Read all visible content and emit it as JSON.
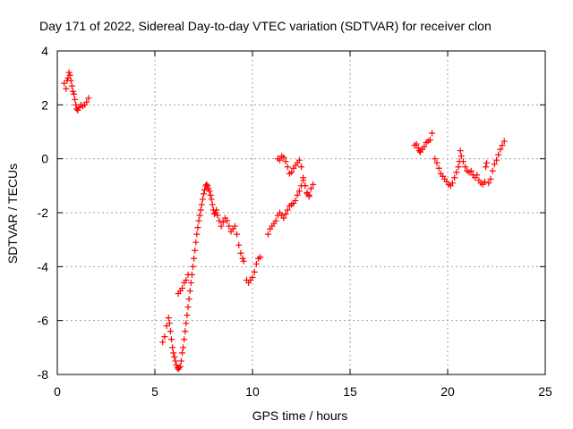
{
  "chart_data": {
    "type": "scatter",
    "title": "Day 171 of 2022, Sidereal Day-to-day VTEC variation (SDTVAR) for receiver clon",
    "xlabel": "GPS time / hours",
    "ylabel": "SDTVAR / TECUs",
    "xlim": [
      0,
      25
    ],
    "ylim": [
      -8,
      4
    ],
    "xticks": [
      "0",
      "5",
      "10",
      "15",
      "20",
      "25"
    ],
    "yticks": [
      "-8",
      "-6",
      "-4",
      "-2",
      "0",
      "2",
      "4"
    ],
    "grid": true,
    "marker": "+",
    "color": "#ff0000",
    "series": [
      {
        "name": "SDTVAR",
        "segments": [
          [
            [
              0.35,
              2.8
            ],
            [
              0.45,
              2.6
            ],
            [
              0.5,
              2.9
            ],
            [
              0.55,
              3.0
            ],
            [
              0.6,
              3.2
            ],
            [
              0.65,
              3.1
            ],
            [
              0.7,
              2.9
            ],
            [
              0.75,
              2.7
            ],
            [
              0.8,
              2.5
            ],
            [
              0.85,
              2.4
            ],
            [
              0.9,
              2.2
            ],
            [
              0.95,
              2.0
            ],
            [
              1.0,
              1.85
            ],
            [
              1.05,
              1.8
            ],
            [
              1.1,
              1.9
            ],
            [
              1.2,
              2.0
            ],
            [
              1.3,
              1.95
            ],
            [
              1.4,
              2.0
            ],
            [
              1.5,
              2.1
            ],
            [
              1.6,
              2.25
            ]
          ],
          [
            [
              5.4,
              -6.8
            ],
            [
              5.5,
              -6.6
            ],
            [
              5.6,
              -6.2
            ],
            [
              5.7,
              -5.9
            ],
            [
              5.75,
              -6.1
            ],
            [
              5.8,
              -6.4
            ],
            [
              5.85,
              -6.7
            ],
            [
              5.9,
              -7.0
            ],
            [
              5.95,
              -7.2
            ],
            [
              6.0,
              -7.35
            ],
            [
              6.05,
              -7.5
            ],
            [
              6.1,
              -7.65
            ],
            [
              6.15,
              -7.75
            ],
            [
              6.2,
              -7.8
            ],
            [
              6.25,
              -7.75
            ],
            [
              6.3,
              -7.7
            ],
            [
              6.35,
              -7.5
            ],
            [
              6.4,
              -7.2
            ],
            [
              6.45,
              -7.0
            ],
            [
              6.5,
              -6.7
            ],
            [
              6.55,
              -6.4
            ],
            [
              6.6,
              -6.1
            ],
            [
              6.65,
              -5.8
            ],
            [
              6.7,
              -5.5
            ],
            [
              6.75,
              -5.2
            ],
            [
              6.8,
              -4.9
            ],
            [
              6.85,
              -4.6
            ],
            [
              6.9,
              -4.3
            ],
            [
              6.95,
              -4.0
            ],
            [
              7.0,
              -3.7
            ],
            [
              7.05,
              -3.4
            ],
            [
              7.1,
              -3.1
            ],
            [
              7.15,
              -2.8
            ],
            [
              7.2,
              -2.55
            ],
            [
              7.25,
              -2.3
            ],
            [
              7.3,
              -2.1
            ],
            [
              7.35,
              -1.9
            ],
            [
              7.4,
              -1.7
            ],
            [
              7.45,
              -1.5
            ],
            [
              7.5,
              -1.3
            ],
            [
              7.55,
              -1.15
            ],
            [
              7.6,
              -1.0
            ],
            [
              7.65,
              -0.95
            ],
            [
              7.7,
              -1.0
            ],
            [
              7.75,
              -1.1
            ],
            [
              7.8,
              -1.2
            ],
            [
              7.85,
              -1.35
            ],
            [
              7.9,
              -1.5
            ],
            [
              7.95,
              -1.7
            ],
            [
              8.0,
              -1.9
            ],
            [
              8.05,
              -2.05
            ],
            [
              8.1,
              -2.0
            ],
            [
              8.15,
              -1.9
            ],
            [
              8.2,
              -2.1
            ],
            [
              8.3,
              -2.3
            ],
            [
              8.4,
              -2.5
            ],
            [
              8.5,
              -2.35
            ],
            [
              8.6,
              -2.2
            ],
            [
              8.7,
              -2.3
            ],
            [
              8.8,
              -2.5
            ],
            [
              8.9,
              -2.7
            ],
            [
              9.0,
              -2.6
            ],
            [
              9.1,
              -2.5
            ],
            [
              9.2,
              -2.8
            ],
            [
              9.3,
              -3.2
            ],
            [
              9.4,
              -3.5
            ],
            [
              9.5,
              -3.7
            ],
            [
              9.55,
              -3.8
            ]
          ],
          [
            [
              6.2,
              -5.0
            ],
            [
              6.3,
              -4.9
            ],
            [
              6.4,
              -4.8
            ],
            [
              6.5,
              -4.6
            ],
            [
              6.6,
              -4.5
            ],
            [
              6.7,
              -4.3
            ]
          ],
          [
            [
              9.7,
              -4.5
            ],
            [
              9.8,
              -4.6
            ],
            [
              9.9,
              -4.5
            ],
            [
              10.0,
              -4.4
            ],
            [
              10.1,
              -4.2
            ],
            [
              10.2,
              -3.9
            ],
            [
              10.3,
              -3.7
            ],
            [
              10.4,
              -3.65
            ]
          ],
          [
            [
              10.8,
              -2.8
            ],
            [
              10.9,
              -2.6
            ],
            [
              11.0,
              -2.5
            ],
            [
              11.1,
              -2.4
            ],
            [
              11.2,
              -2.3
            ],
            [
              11.3,
              -2.1
            ],
            [
              11.4,
              -2.0
            ],
            [
              11.5,
              -2.1
            ],
            [
              11.6,
              -2.2
            ],
            [
              11.7,
              -2.05
            ],
            [
              11.8,
              -1.9
            ],
            [
              11.9,
              -1.75
            ],
            [
              12.0,
              -1.7
            ],
            [
              12.1,
              -1.65
            ],
            [
              12.2,
              -1.55
            ],
            [
              12.3,
              -1.35
            ],
            [
              12.4,
              -1.2
            ],
            [
              12.5,
              -1.0
            ],
            [
              12.6,
              -0.8
            ],
            [
              12.7,
              -1.0
            ],
            [
              12.8,
              -1.3
            ],
            [
              12.9,
              -1.35
            ],
            [
              13.0,
              -1.1
            ],
            [
              13.1,
              -0.95
            ]
          ],
          [
            [
              11.3,
              0.0
            ],
            [
              11.4,
              -0.05
            ],
            [
              11.5,
              0.1
            ],
            [
              11.6,
              0.05
            ],
            [
              11.7,
              -0.1
            ],
            [
              11.8,
              -0.3
            ],
            [
              11.9,
              -0.55
            ],
            [
              12.0,
              -0.5
            ],
            [
              12.1,
              -0.35
            ],
            [
              12.2,
              -0.25
            ],
            [
              12.3,
              -0.15
            ],
            [
              12.4,
              -0.05
            ],
            [
              12.5,
              -0.3
            ],
            [
              12.6,
              -0.7
            ],
            [
              12.7,
              -1.0
            ],
            [
              12.8,
              -1.25
            ],
            [
              12.9,
              -1.4
            ]
          ],
          [
            [
              18.3,
              0.5
            ],
            [
              18.4,
              0.55
            ],
            [
              18.5,
              0.4
            ],
            [
              18.55,
              0.3
            ],
            [
              18.6,
              0.25
            ],
            [
              18.7,
              0.35
            ],
            [
              18.8,
              0.45
            ],
            [
              18.9,
              0.6
            ],
            [
              19.0,
              0.65
            ],
            [
              19.1,
              0.7
            ],
            [
              19.2,
              0.95
            ]
          ],
          [
            [
              19.35,
              0.0
            ],
            [
              19.45,
              -0.15
            ],
            [
              19.55,
              -0.35
            ],
            [
              19.65,
              -0.55
            ],
            [
              19.75,
              -0.65
            ],
            [
              19.85,
              -0.75
            ],
            [
              19.95,
              -0.85
            ],
            [
              20.05,
              -0.95
            ],
            [
              20.15,
              -1.0
            ],
            [
              20.25,
              -0.9
            ],
            [
              20.35,
              -0.7
            ],
            [
              20.45,
              -0.5
            ],
            [
              20.55,
              -0.3
            ],
            [
              20.6,
              -0.1
            ],
            [
              20.65,
              0.3
            ],
            [
              20.7,
              0.1
            ],
            [
              20.8,
              -0.1
            ],
            [
              20.9,
              -0.3
            ],
            [
              21.0,
              -0.45
            ],
            [
              21.1,
              -0.5
            ],
            [
              21.2,
              -0.45
            ],
            [
              21.3,
              -0.6
            ],
            [
              21.4,
              -0.7
            ],
            [
              21.5,
              -0.6
            ],
            [
              21.6,
              -0.8
            ],
            [
              21.7,
              -0.9
            ],
            [
              21.8,
              -0.95
            ],
            [
              21.9,
              -0.85
            ],
            [
              21.95,
              -0.3
            ],
            [
              22.0,
              -0.15
            ],
            [
              22.1,
              -0.9
            ],
            [
              22.2,
              -0.75
            ],
            [
              22.3,
              -0.45
            ],
            [
              22.4,
              -0.2
            ],
            [
              22.5,
              -0.05
            ],
            [
              22.6,
              0.15
            ],
            [
              22.7,
              0.35
            ],
            [
              22.8,
              0.5
            ],
            [
              22.9,
              0.65
            ]
          ]
        ]
      }
    ]
  }
}
